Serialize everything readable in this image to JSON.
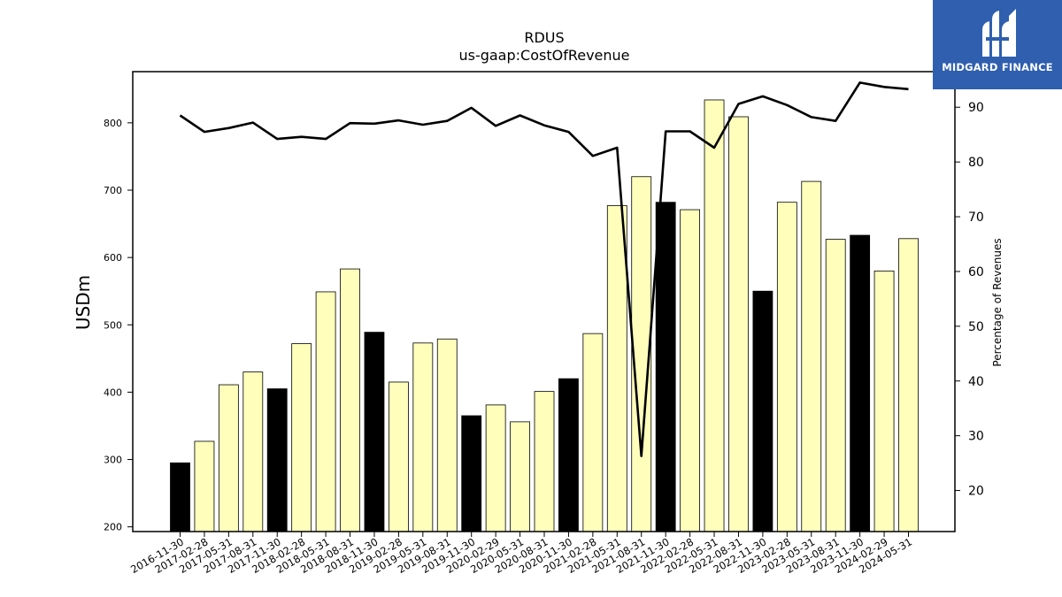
{
  "chart_data": {
    "type": "bar",
    "title": "RDUS",
    "subtitle": "us-gaap:CostOfRevenue",
    "ylabel": "USDm",
    "y2label": "Percentage of Revenues",
    "ylim": [
      193,
      876
    ],
    "y2lim": [
      12.5,
      96.5
    ],
    "yticks": [
      200,
      300,
      400,
      500,
      600,
      700,
      800
    ],
    "y2ticks": [
      20,
      30,
      40,
      50,
      60,
      70,
      80,
      90
    ],
    "categories": [
      "2016-11-30",
      "2017-02-28",
      "2017-05-31",
      "2017-08-31",
      "2017-11-30",
      "2018-02-28",
      "2018-05-31",
      "2018-08-31",
      "2018-11-30",
      "2019-02-28",
      "2019-05-31",
      "2019-08-31",
      "2019-11-30",
      "2020-02-29",
      "2020-05-31",
      "2020-08-31",
      "2020-11-30",
      "2021-02-28",
      "2021-05-31",
      "2021-08-31",
      "2021-11-30",
      "2022-02-28",
      "2022-05-31",
      "2022-08-31",
      "2022-11-30",
      "2023-02-28",
      "2023-05-31",
      "2023-08-31",
      "2023-11-30",
      "2024-02-29",
      "2024-05-31"
    ],
    "series": [
      {
        "kind": "bar",
        "values": [
          295,
          327,
          411,
          430,
          405,
          472,
          549,
          583,
          489,
          415,
          473,
          479,
          365,
          381,
          356,
          401,
          420,
          487,
          677,
          720,
          682,
          671,
          834,
          809,
          550,
          682,
          713,
          627,
          633,
          580,
          628
        ],
        "highlight": [
          true,
          false,
          false,
          false,
          true,
          false,
          false,
          false,
          true,
          false,
          false,
          false,
          true,
          false,
          false,
          false,
          true,
          false,
          false,
          false,
          true,
          false,
          false,
          false,
          true,
          false,
          false,
          false,
          true,
          false,
          false
        ],
        "color": "#ffffbb",
        "highlight_color": "#000000"
      },
      {
        "kind": "line",
        "axis": "right",
        "values": [
          88.5,
          85.5,
          86.2,
          87.2,
          84.2,
          84.6,
          84.2,
          87.1,
          87.0,
          87.6,
          86.8,
          87.5,
          89.9,
          86.6,
          88.5,
          86.7,
          85.5,
          81.1,
          82.6,
          26.3,
          85.6,
          85.6,
          82.6,
          90.6,
          92.0,
          90.4,
          88.2,
          87.5,
          94.5,
          93.7,
          93.3
        ],
        "color": "#000000"
      }
    ],
    "grid": false
  },
  "logo": {
    "text": "MIDGARD FINANCE",
    "color": "#2f5fae"
  }
}
